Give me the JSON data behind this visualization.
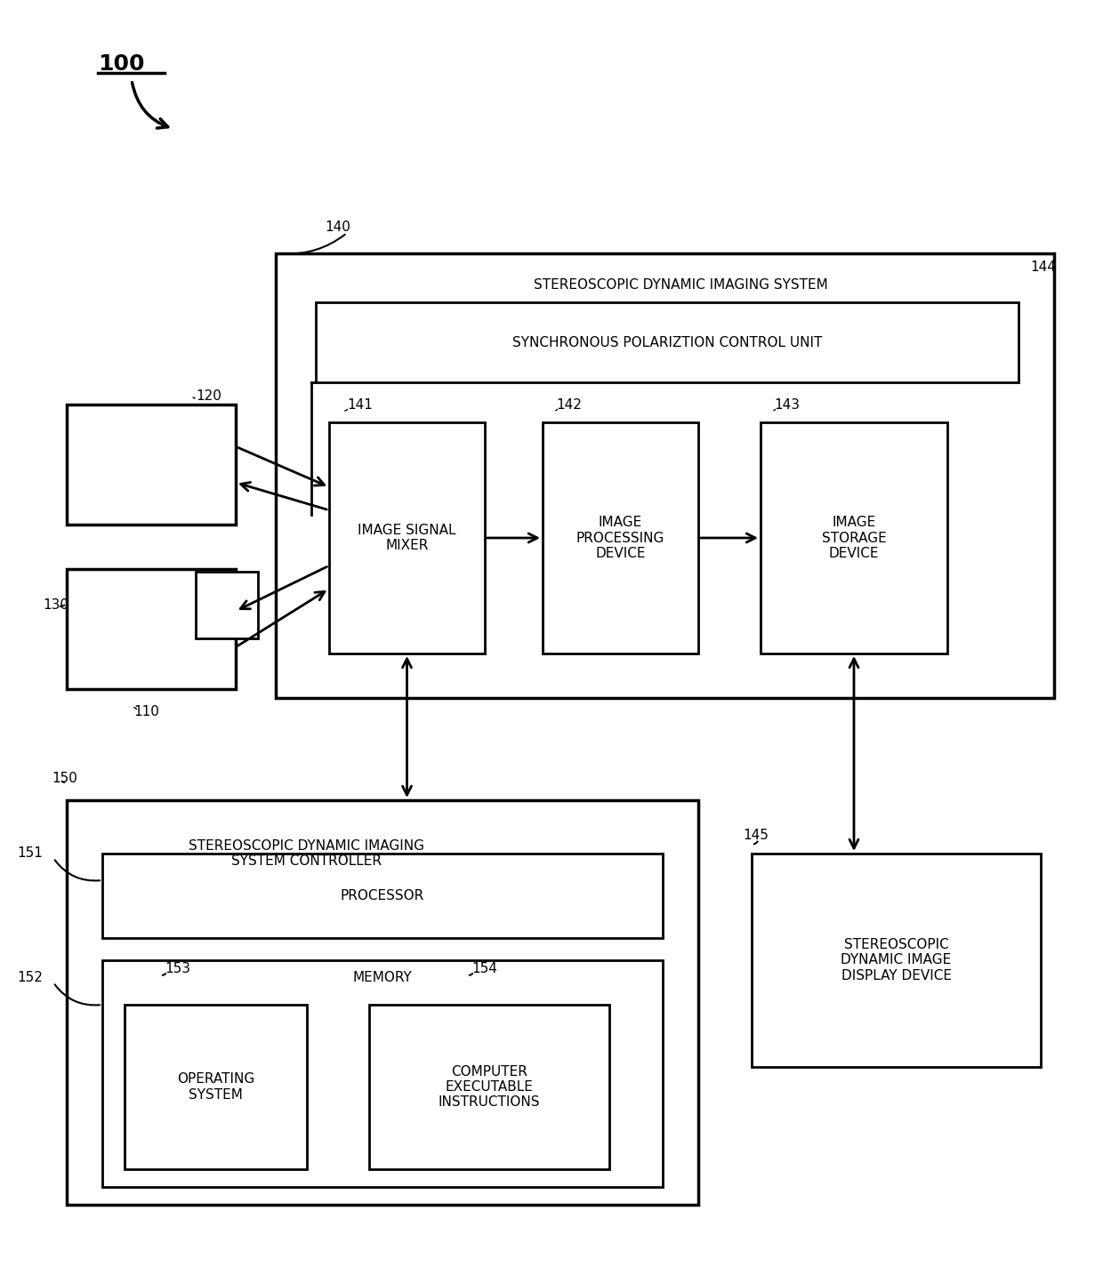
{
  "bg_color": "#ffffff",
  "line_color": "#000000",
  "text_color": "#000000",
  "fig_width": 12.4,
  "fig_height": 14.25,
  "label_100": "100",
  "label_140": "140",
  "label_144": "144",
  "label_120": "120",
  "label_130": "130",
  "label_110": "110",
  "label_141": "141",
  "label_142": "142",
  "label_143": "143",
  "label_150": "150",
  "label_151": "151",
  "label_152": "152",
  "label_153": "153",
  "label_154": "154",
  "label_145": "145",
  "text_sdis": "STEREOSCOPIC DYNAMIC IMAGING SYSTEM",
  "text_spcu": "SYNCHRONOUS POLARIZTION CONTROL UNIT",
  "text_ism": "IMAGE SIGNAL\nMIXER",
  "text_ipd": "IMAGE\nPROCESSING\nDEVICE",
  "text_isd": "IMAGE\nSTORAGE\nDEVICE",
  "text_sdisc": "STEREOSCOPIC DYNAMIC IMAGING\nSYSTEM CONTROLLER",
  "text_proc": "PROCESSOR",
  "text_mem": "MEMORY",
  "text_os": "OPERATING\nSYSTEM",
  "text_cei": "COMPUTER\nEXECUTABLE\nINSTRUCTIONS",
  "text_sdid": "STEREOSCOPIC\nDYNAMIC IMAGE\nDISPLAY DEVICE"
}
